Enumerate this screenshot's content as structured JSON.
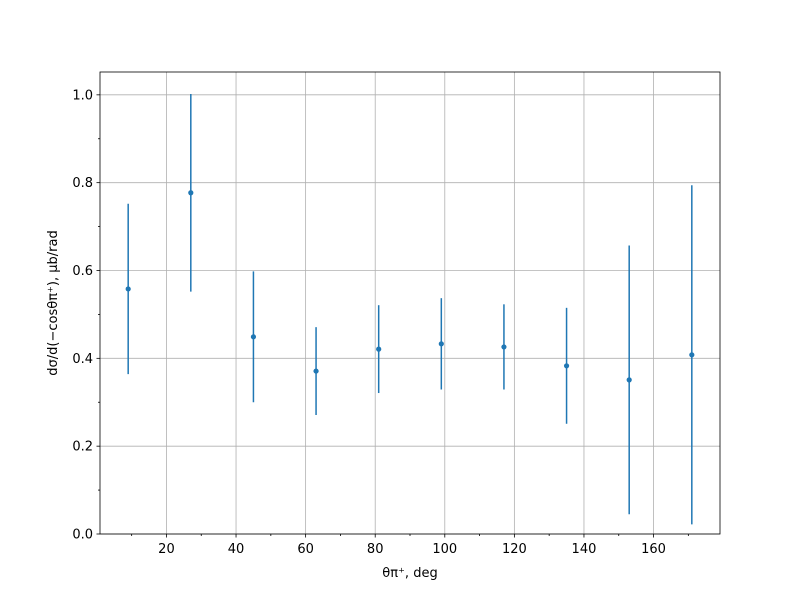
{
  "chart_data": {
    "type": "errorbar",
    "xlabel": "θπ⁺, deg",
    "ylabel": "dσ/d(−cosθπ⁺), μb/rad",
    "x": [
      9,
      27,
      45,
      63,
      81,
      99,
      117,
      135,
      153,
      171
    ],
    "values": [
      0.558,
      0.777,
      0.449,
      0.371,
      0.421,
      0.433,
      0.426,
      0.383,
      0.351,
      0.408
    ],
    "errors": [
      0.194,
      0.225,
      0.149,
      0.1,
      0.1,
      0.104,
      0.097,
      0.132,
      0.306,
      0.386
    ],
    "color": "#1f77b4",
    "xlim": [
      0.9,
      179.1
    ],
    "ylim": [
      0,
      1.052
    ],
    "xticks": [
      20,
      40,
      60,
      80,
      100,
      120,
      140,
      160
    ],
    "xminorticks": [
      10,
      30,
      50,
      70,
      90,
      110,
      130,
      150,
      170
    ],
    "yticks": [
      {
        "value": 0,
        "label": "0.0"
      },
      0.2,
      0.4,
      0.6,
      0.8,
      {
        "value": 1,
        "label": "1.0"
      }
    ],
    "yminorticks": [
      0.1,
      0.3,
      0.5,
      0.7,
      0.9
    ],
    "grid": true
  }
}
